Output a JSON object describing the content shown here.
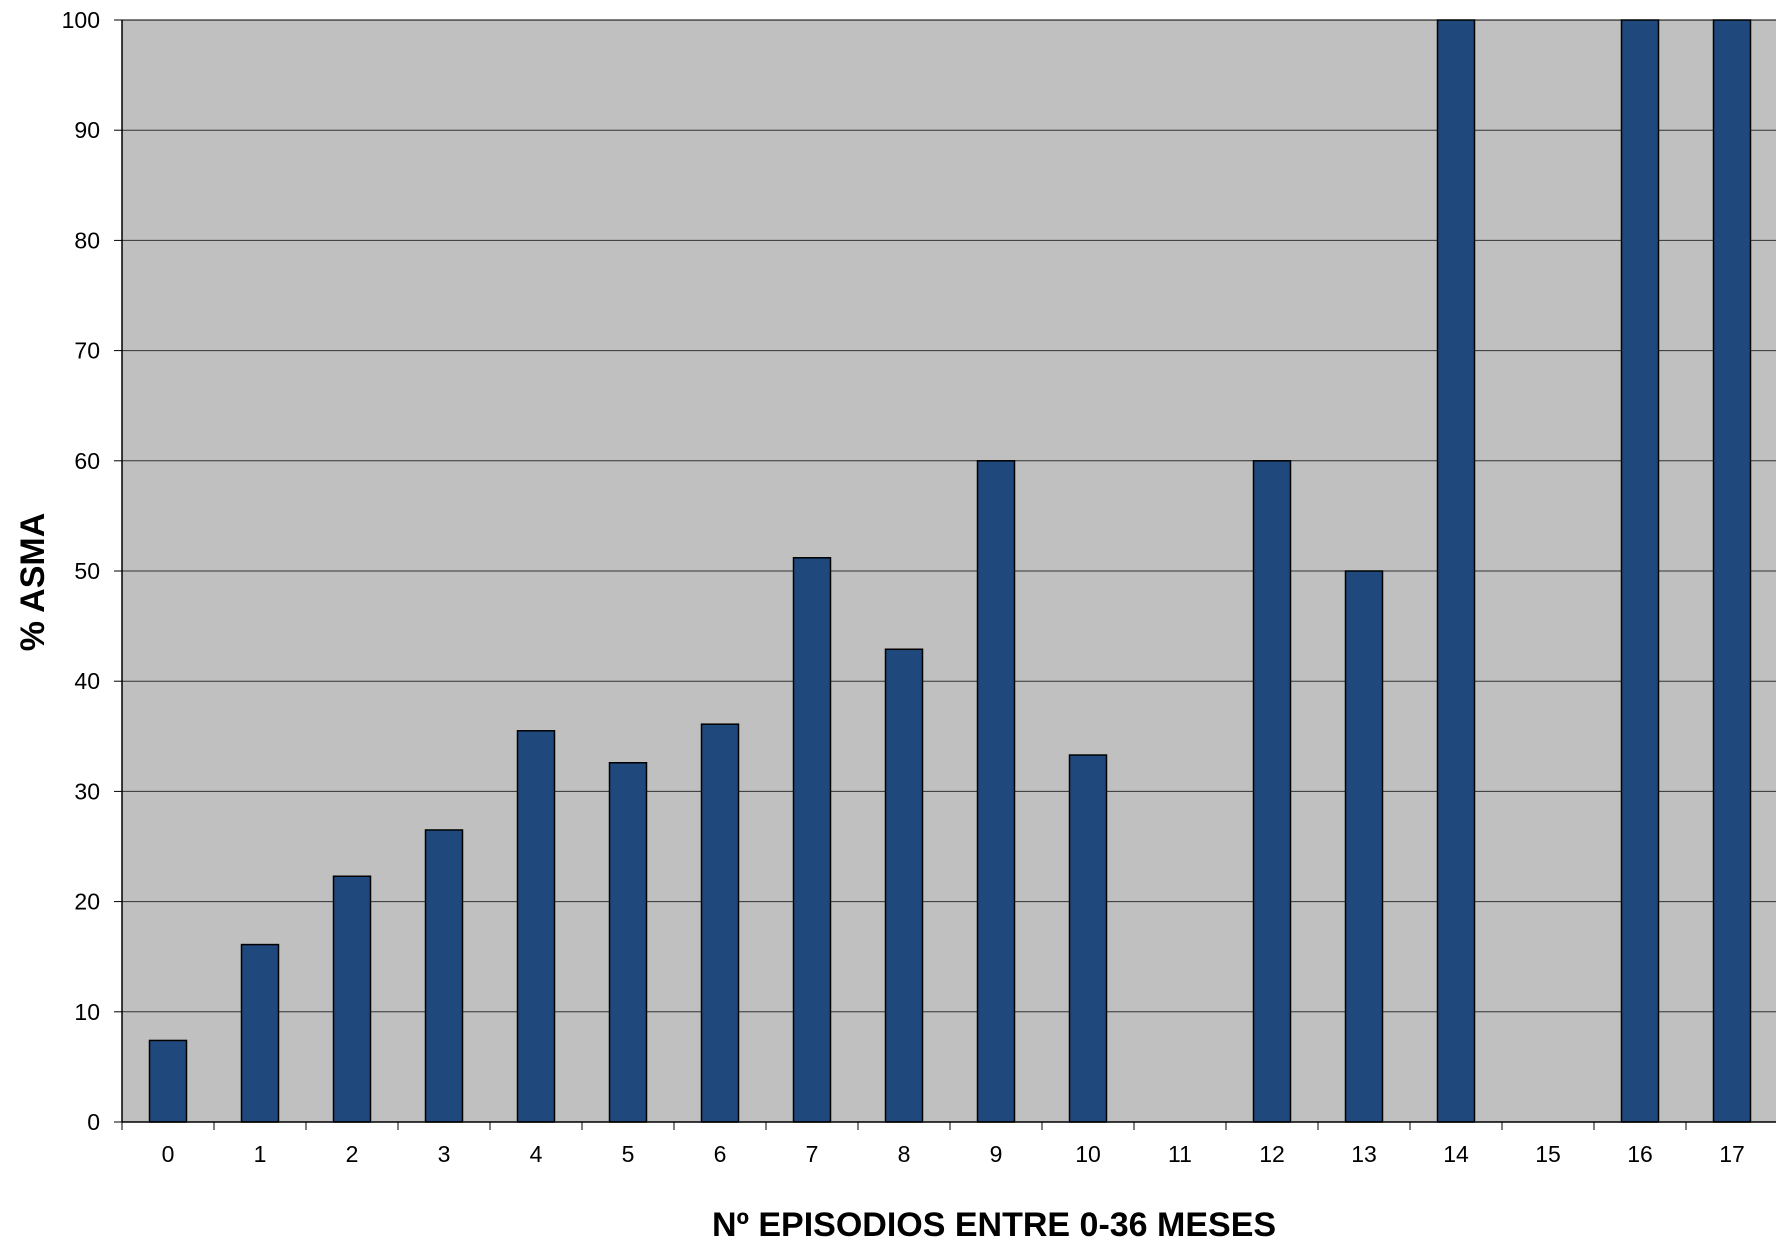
{
  "chart_data": {
    "type": "bar",
    "xlabel": "Nº EPISODIOS ENTRE 0-36 MESES",
    "ylabel": "% ASMA",
    "categories": [
      "0",
      "1",
      "2",
      "3",
      "4",
      "5",
      "6",
      "7",
      "8",
      "9",
      "10",
      "11",
      "12",
      "13",
      "14",
      "15",
      "16",
      "17"
    ],
    "values": [
      7.4,
      16.1,
      22.3,
      26.5,
      35.5,
      32.6,
      36.1,
      51.2,
      42.9,
      60,
      33.3,
      null,
      60,
      50,
      100,
      null,
      100,
      100
    ],
    "ylim": [
      0,
      100
    ],
    "yticks": [
      "0",
      "10",
      "20",
      "30",
      "40",
      "50",
      "60",
      "70",
      "80",
      "90",
      "100"
    ],
    "grid": true,
    "legend": "none",
    "colors": {
      "bar": "#1f487c",
      "bar_border": "#000000",
      "plot_background": "#c0c0c0",
      "gridline": "#333333"
    }
  }
}
